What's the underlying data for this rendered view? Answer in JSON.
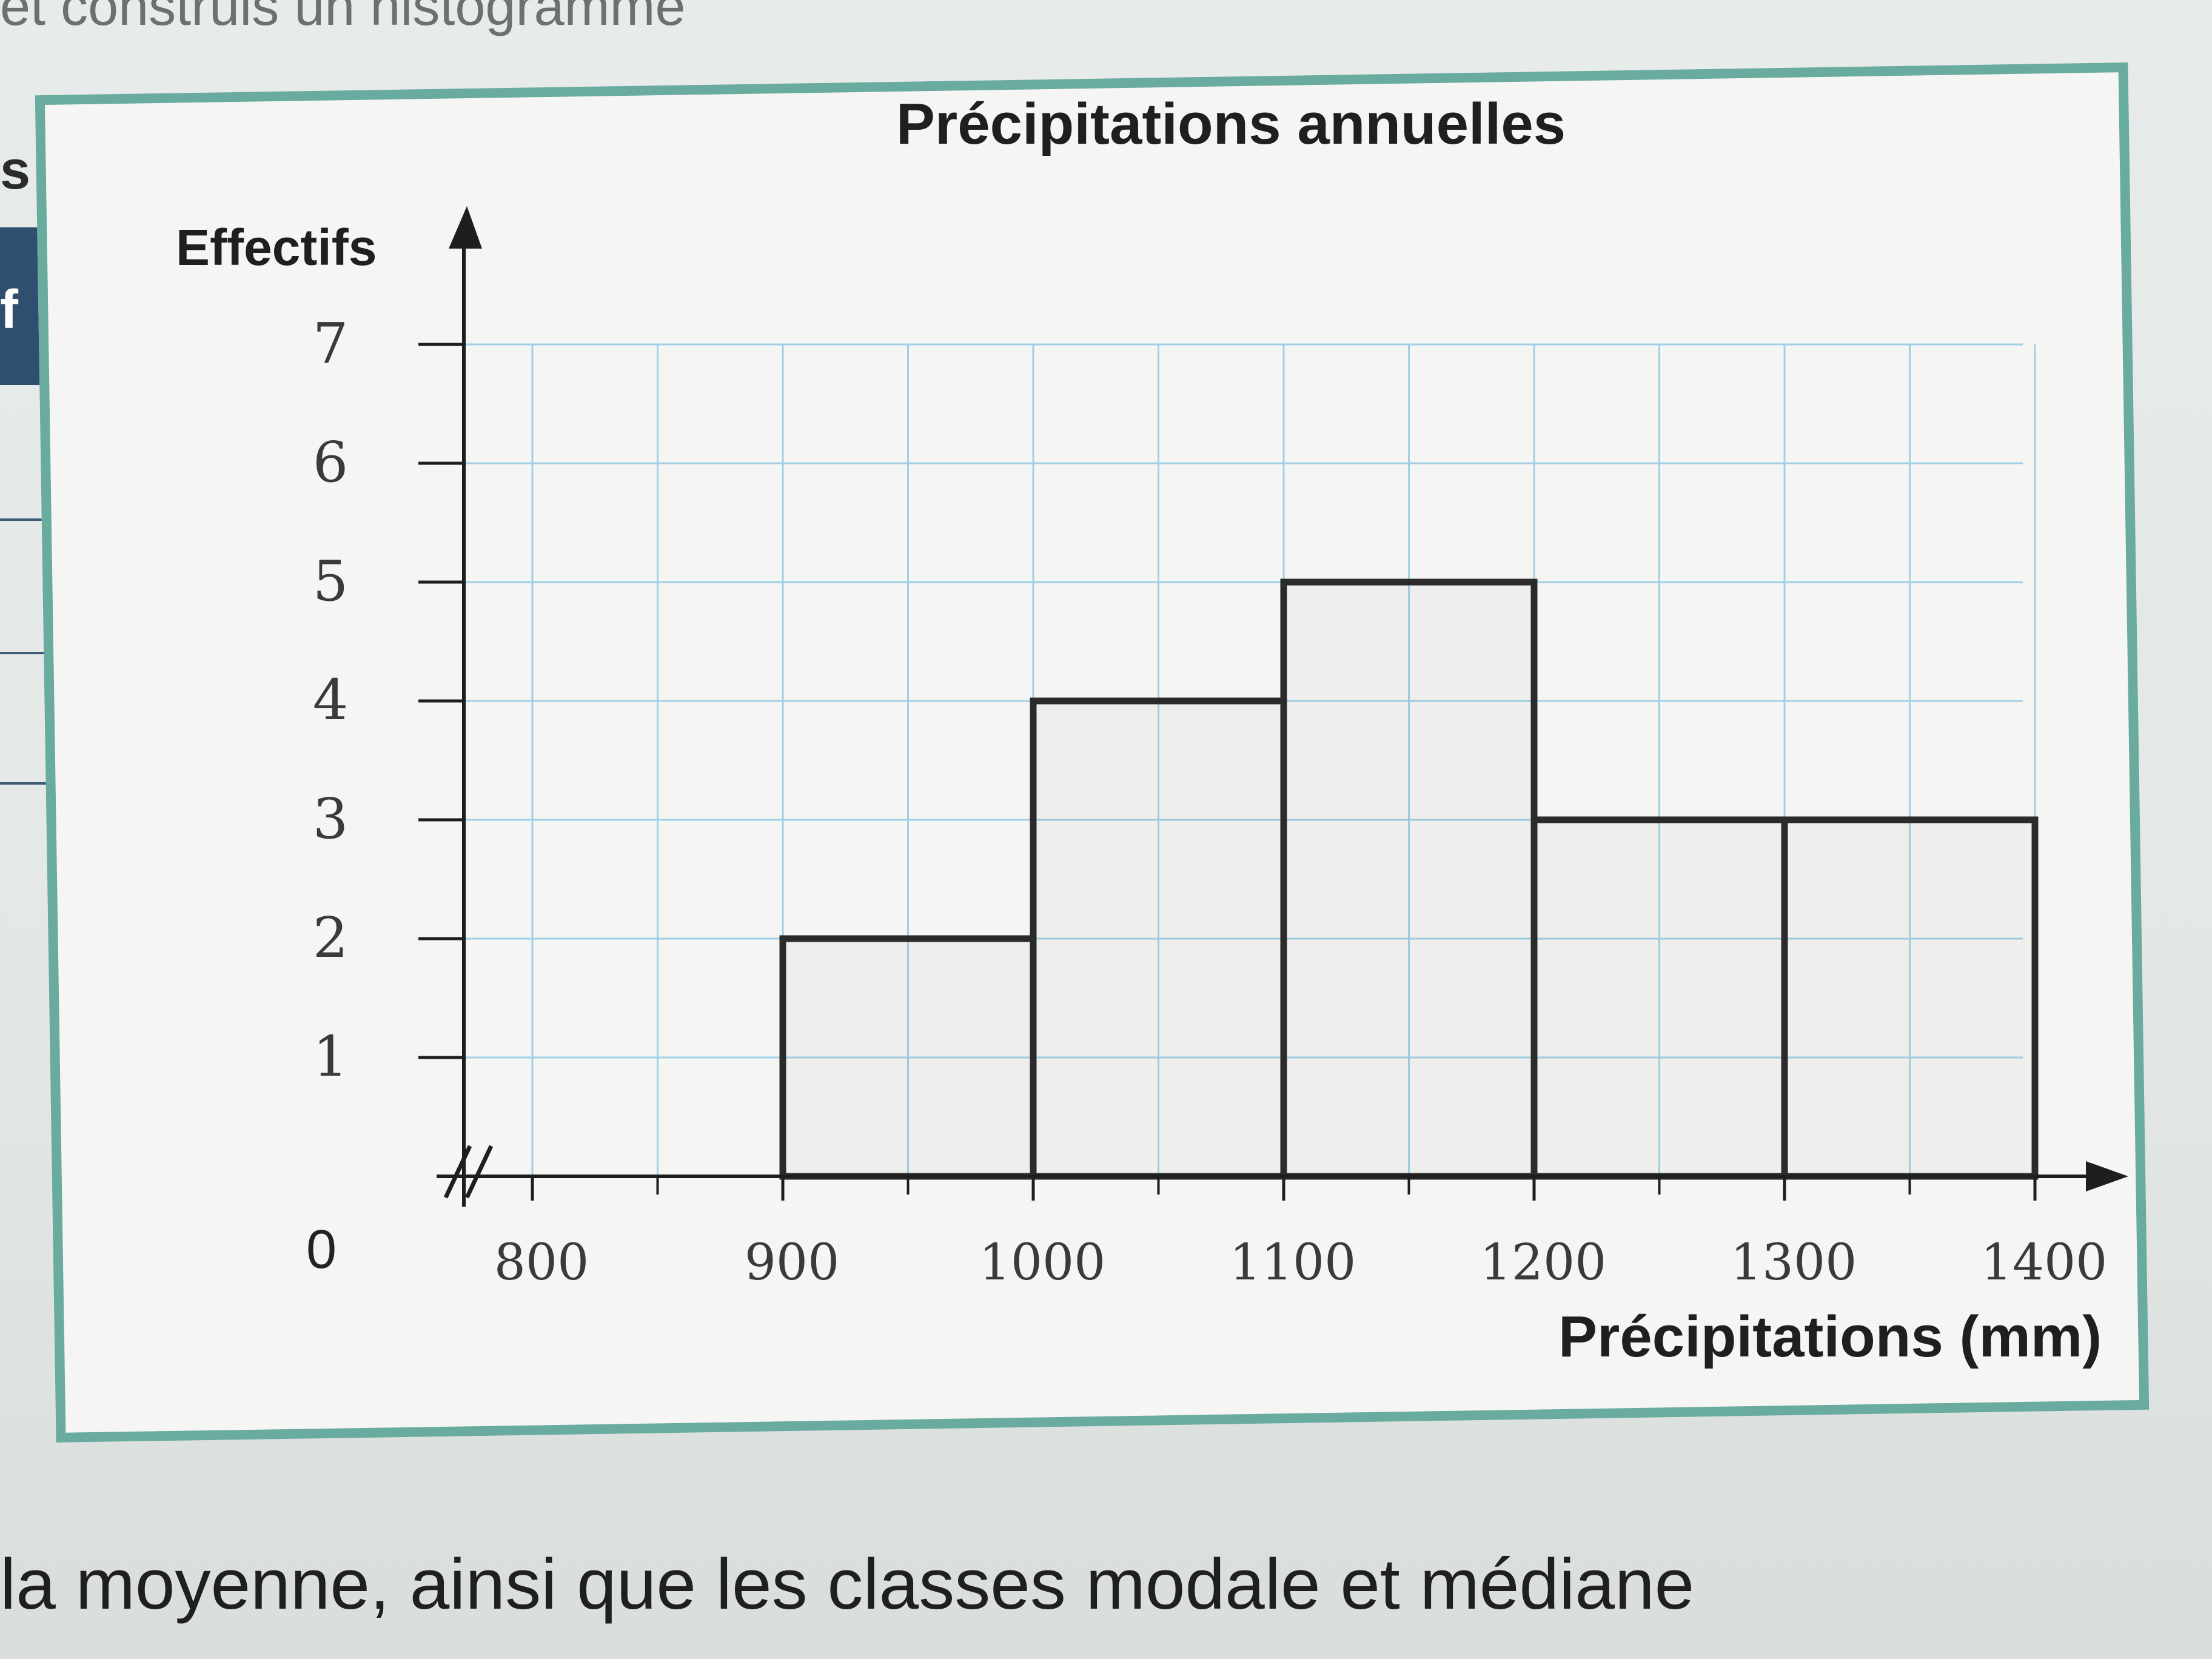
{
  "page": {
    "top_text": "et construis un histogramme",
    "left_letter": "s",
    "left_tab_letter": "f",
    "bottom_text": "la moyenne, ainsi que les classes modale et médiane"
  },
  "colors": {
    "frame": "#6aab9f",
    "grid": "#9fd0e6",
    "bars": "#2b2b2b",
    "left_tab": "#2f4f6f"
  },
  "chart_data": {
    "type": "bar",
    "title": "Précipitations annuelles",
    "xlabel": "Précipitations (mm)",
    "ylabel": "Effectifs",
    "origin_label": "0",
    "x_ticks": [
      "800",
      "900",
      "1000",
      "1100",
      "1200",
      "1300",
      "1400"
    ],
    "y_ticks": [
      "1",
      "2",
      "3",
      "4",
      "5",
      "6",
      "7"
    ],
    "bins": [
      {
        "from": 900,
        "to": 1000,
        "value": 2
      },
      {
        "from": 1000,
        "to": 1100,
        "value": 4
      },
      {
        "from": 1100,
        "to": 1200,
        "value": 5
      },
      {
        "from": 1200,
        "to": 1300,
        "value": 3
      },
      {
        "from": 1300,
        "to": 1400,
        "value": 3
      }
    ],
    "xlim": [
      800,
      1400
    ],
    "ylim": [
      0,
      7
    ],
    "grid": true,
    "axis_break": true
  }
}
